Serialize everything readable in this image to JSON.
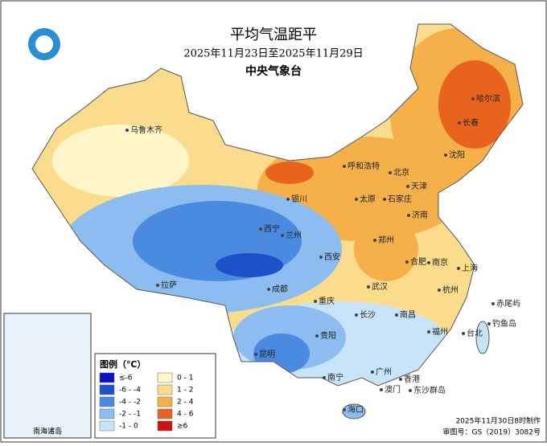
{
  "header": {
    "title": "平均气温距平",
    "subtitle": "2025年11月23日至2025年11月29日",
    "agency": "中央气象台"
  },
  "legend": {
    "title": "图例（℃）",
    "items": [
      {
        "label": "≤-6",
        "color": "#0a14c0"
      },
      {
        "label": "-6 - -4",
        "color": "#1e50c8"
      },
      {
        "label": "-4 - -2",
        "color": "#4a8ae0"
      },
      {
        "label": "-2 - -1",
        "color": "#8cbcf0"
      },
      {
        "label": "-1 - 0",
        "color": "#c8e4fa"
      },
      {
        "label": "0 - 1",
        "color": "#fff5c8"
      },
      {
        "label": "1 - 2",
        "color": "#fbdc8c"
      },
      {
        "label": "2 - 4",
        "color": "#f5b04a"
      },
      {
        "label": "4 - 6",
        "color": "#e8641e"
      },
      {
        "label": "≥6",
        "color": "#c81414"
      }
    ]
  },
  "cities": [
    "哈尔滨",
    "长春",
    "沈阳",
    "呼和浩特",
    "北京",
    "天津",
    "太原",
    "石家庄",
    "济南",
    "银川",
    "西宁",
    "兰州",
    "郑州",
    "西安",
    "合肥",
    "南京",
    "上海",
    "杭州",
    "武汉",
    "成都",
    "重庆",
    "长沙",
    "南昌",
    "福州",
    "台北",
    "贵阳",
    "昆明",
    "南宁",
    "广州",
    "香港",
    "澳门",
    "海口",
    "拉萨",
    "乌鲁木齐",
    "钓鱼岛",
    "赤尾屿",
    "东沙群岛"
  ],
  "inset": {
    "label": "南海诸岛"
  },
  "footer": {
    "made": "2025年11月30日8时制作",
    "approval": "审图号：GS（2019）3082号"
  }
}
